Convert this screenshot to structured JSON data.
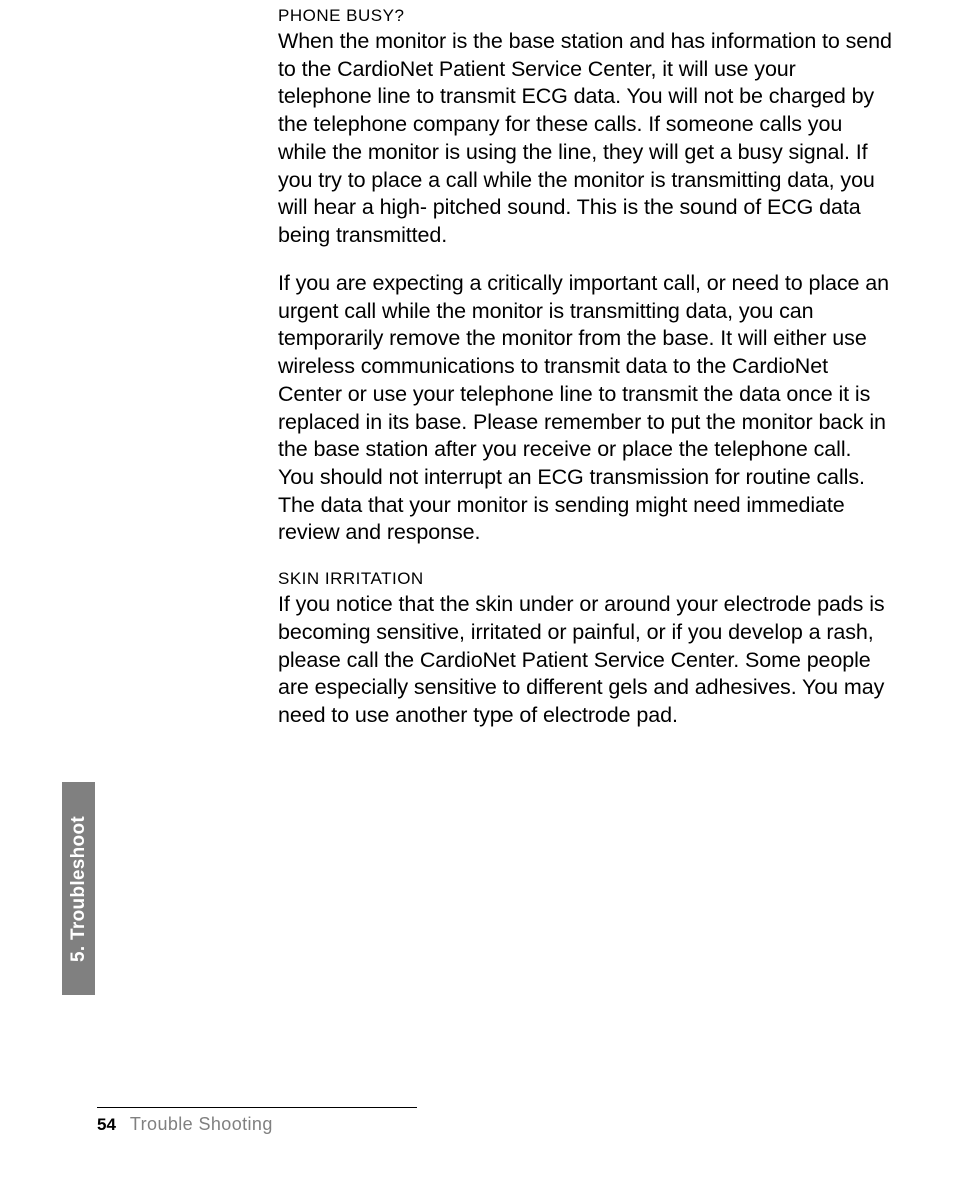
{
  "sections": {
    "phone_busy": {
      "heading": "PHONE BUSY?",
      "para1": "When the monitor is the base station and has information to send to the CardioNet Patient Service Center, it will use your telephone line to transmit ECG data. You will not be charged by the telephone company for these calls. If someone calls you while the monitor is using the line, they will get a busy signal. If you try to place a call while the monitor is transmitting data, you will hear a high- pitched sound. This is the sound of ECG data being transmitted.",
      "para2": "If you are expecting a critically important call, or need to place an urgent call while the monitor is transmitting data, you can temporarily remove the monitor from the base. It will either use wireless communications to transmit data to the CardioNet Center or use your telephone line to transmit the data once it is replaced in its base. Please remember to put the monitor back in the base station after you receive or place the telephone call.",
      "para3": "You should not interrupt an ECG transmission for routine calls. The data that your monitor is sending might need immediate review and response."
    },
    "skin_irritation": {
      "heading": "SKIN IRRITATION",
      "para1": "If you notice that the skin under or around your electrode pads is becoming sensitive, irritated or painful, or if you develop a rash, please call the CardioNet Patient Service Center. Some people are especially sensitive to different gels and adhesives. You may need to use another type of electrode pad."
    }
  },
  "side_tab": {
    "label": "5. Troubleshoot"
  },
  "footer": {
    "page_number": "54",
    "section_label": "Trouble Shooting"
  },
  "colors": {
    "text": "#000000",
    "background": "#ffffff",
    "tab_bg": "#808080",
    "tab_text": "#ffffff",
    "footer_label": "#808080"
  }
}
